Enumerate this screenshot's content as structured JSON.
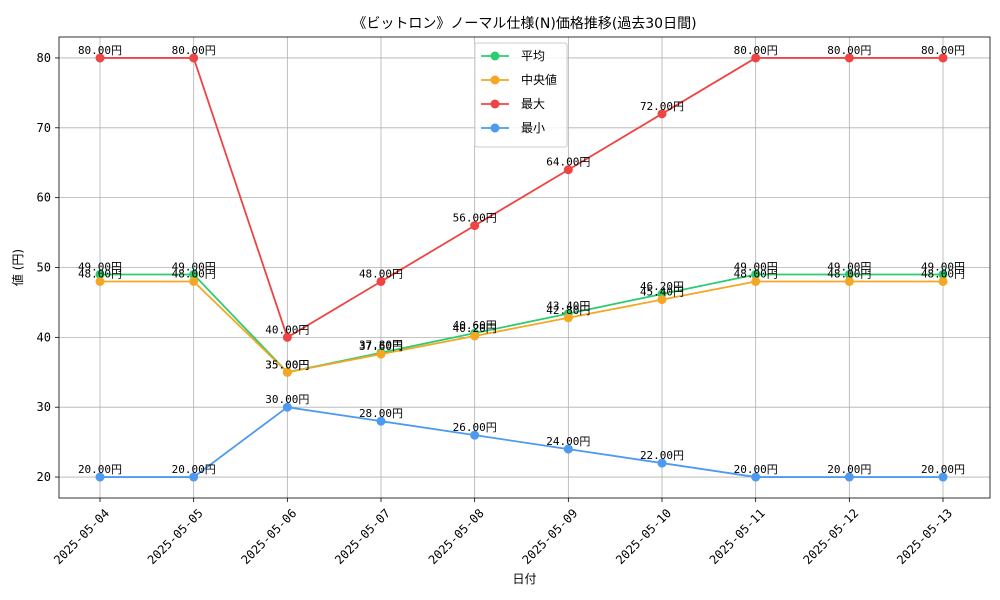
{
  "chart_data": {
    "type": "line",
    "title": "《ビットロン》ノーマル仕様(N)価格推移(過去30日間)",
    "xlabel": "日付",
    "ylabel": "値 (円)",
    "categories": [
      "2025-05-04",
      "2025-05-05",
      "2025-05-06",
      "2025-05-07",
      "2025-05-08",
      "2025-05-09",
      "2025-05-10",
      "2025-05-11",
      "2025-05-12",
      "2025-05-13"
    ],
    "ylim": [
      17,
      83
    ],
    "yticks": [
      20,
      30,
      40,
      50,
      60,
      70,
      80
    ],
    "grid": true,
    "legend_position": "top-center",
    "value_suffix": "円",
    "series": [
      {
        "name": "平均",
        "color": "#2ecc71",
        "values": [
          49.0,
          49.0,
          35.0,
          37.8,
          40.6,
          43.4,
          46.2,
          49.0,
          49.0,
          49.0
        ]
      },
      {
        "name": "中央値",
        "color": "#f5a623",
        "values": [
          48.0,
          48.0,
          35.0,
          37.6,
          40.2,
          42.8,
          45.4,
          48.0,
          48.0,
          48.0
        ]
      },
      {
        "name": "最大",
        "color": "#ef4444",
        "values": [
          80.0,
          80.0,
          40.0,
          48.0,
          56.0,
          64.0,
          72.0,
          80.0,
          80.0,
          80.0
        ]
      },
      {
        "name": "最小",
        "color": "#4d9af0",
        "values": [
          20.0,
          20.0,
          30.0,
          28.0,
          26.0,
          24.0,
          22.0,
          20.0,
          20.0,
          20.0
        ]
      }
    ]
  }
}
